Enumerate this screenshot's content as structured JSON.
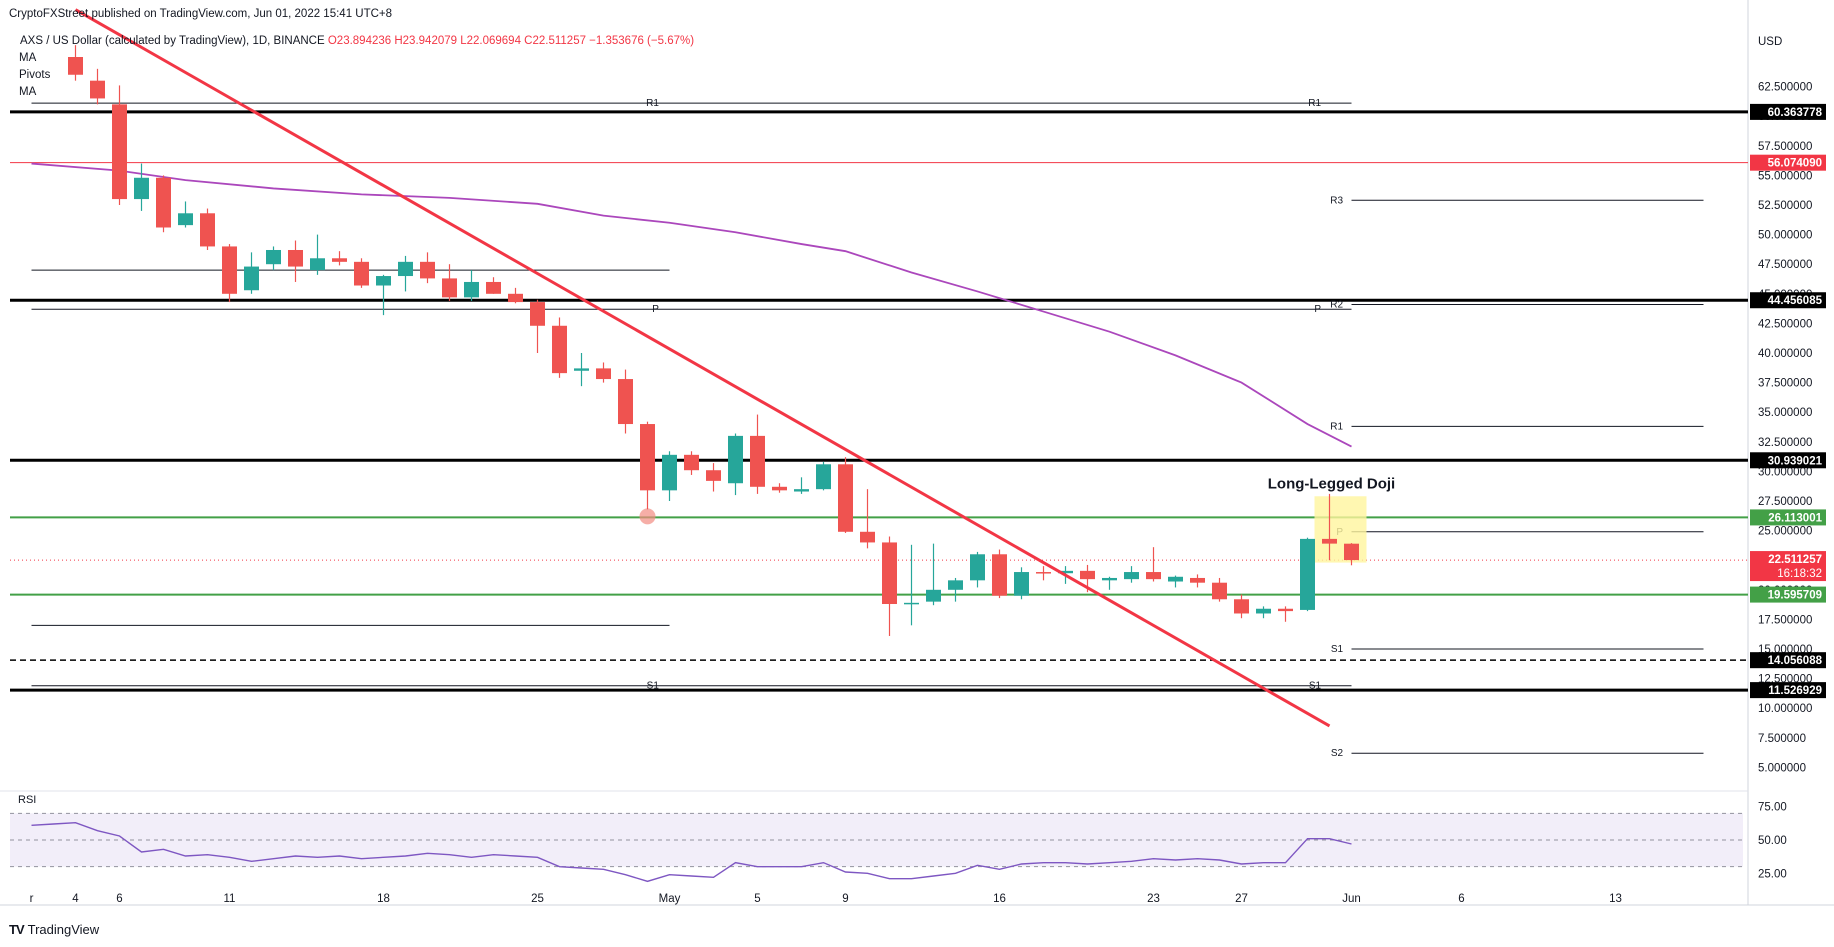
{
  "header": {
    "publisher": "CryptoFXStreet published on TradingView.com, Jun 01, 2022 15:41 UTC+8",
    "symbol": "AXS / US Dollar (calculated by TradingView), 1D, BINANCE",
    "ohlc": "O23.894236  H23.942079  L22.069694  C22.511257  −1.353676 (−5.67%)",
    "indicators": [
      "MA",
      "Pivots",
      "MA"
    ]
  },
  "branding": {
    "label": "TradingView",
    "logo": "TV"
  },
  "chart_data": {
    "type": "candlestick",
    "title": "AXS / US Dollar (calculated by TradingView), 1D, BINANCE",
    "currency_label": "USD",
    "y_range": [
      2.5,
      65.0
    ],
    "y_ticks": [
      5.0,
      7.5,
      10.0,
      12.5,
      15.0,
      17.5,
      20.0,
      22.5,
      25.0,
      27.5,
      30.0,
      32.5,
      35.0,
      37.5,
      40.0,
      42.5,
      45.0,
      47.5,
      50.0,
      52.5,
      55.0,
      57.5,
      60.0,
      62.5
    ],
    "x_ticks": [
      {
        "label": "r",
        "day": -29
      },
      {
        "label": "4",
        "day": -27
      },
      {
        "label": "6",
        "day": -25
      },
      {
        "label": "11",
        "day": -20
      },
      {
        "label": "18",
        "day": -13
      },
      {
        "label": "25",
        "day": -6
      },
      {
        "label": "May",
        "day": 0
      },
      {
        "label": "5",
        "day": 4
      },
      {
        "label": "9",
        "day": 8
      },
      {
        "label": "16",
        "day": 15
      },
      {
        "label": "23",
        "day": 22
      },
      {
        "label": "27",
        "day": 26
      },
      {
        "label": "Jun",
        "day": 31
      },
      {
        "label": "6",
        "day": 36
      },
      {
        "label": "13",
        "day": 43
      }
    ],
    "candles": [
      {
        "day": -27,
        "o": 65.0,
        "h": 66.0,
        "l": 63.0,
        "c": 63.5
      },
      {
        "day": -26,
        "o": 63.0,
        "h": 64.0,
        "l": 61.0,
        "c": 61.5
      },
      {
        "day": -25,
        "o": 61.0,
        "h": 62.6,
        "l": 52.5,
        "c": 53.0
      },
      {
        "day": -24,
        "o": 53.0,
        "h": 56.0,
        "l": 52.0,
        "c": 54.8
      },
      {
        "day": -23,
        "o": 54.8,
        "h": 55.0,
        "l": 50.2,
        "c": 50.6
      },
      {
        "day": -22,
        "o": 50.8,
        "h": 52.8,
        "l": 50.6,
        "c": 51.8
      },
      {
        "day": -21,
        "o": 51.8,
        "h": 52.2,
        "l": 48.7,
        "c": 49.0
      },
      {
        "day": -20,
        "o": 49.0,
        "h": 49.2,
        "l": 44.3,
        "c": 45.0
      },
      {
        "day": -19,
        "o": 45.3,
        "h": 48.5,
        "l": 45.0,
        "c": 47.3
      },
      {
        "day": -18,
        "o": 47.5,
        "h": 49.0,
        "l": 47.0,
        "c": 48.7
      },
      {
        "day": -17,
        "o": 48.7,
        "h": 49.5,
        "l": 46.0,
        "c": 47.3
      },
      {
        "day": -16,
        "o": 47.0,
        "h": 50.0,
        "l": 46.6,
        "c": 48.0
      },
      {
        "day": -15,
        "o": 48.0,
        "h": 48.6,
        "l": 47.4,
        "c": 47.7
      },
      {
        "day": -14,
        "o": 47.7,
        "h": 48.0,
        "l": 45.5,
        "c": 45.7
      },
      {
        "day": -13,
        "o": 45.7,
        "h": 46.6,
        "l": 43.2,
        "c": 46.5
      },
      {
        "day": -12,
        "o": 46.5,
        "h": 48.2,
        "l": 45.2,
        "c": 47.7
      },
      {
        "day": -11,
        "o": 47.7,
        "h": 48.5,
        "l": 45.9,
        "c": 46.3
      },
      {
        "day": -10,
        "o": 46.3,
        "h": 47.5,
        "l": 44.4,
        "c": 44.7
      },
      {
        "day": -9,
        "o": 44.7,
        "h": 47.0,
        "l": 44.4,
        "c": 46.0
      },
      {
        "day": -8,
        "o": 46.0,
        "h": 46.4,
        "l": 45.0,
        "c": 45.0
      },
      {
        "day": -7,
        "o": 45.0,
        "h": 45.5,
        "l": 44.2,
        "c": 44.3
      },
      {
        "day": -6,
        "o": 44.3,
        "h": 44.5,
        "l": 40.0,
        "c": 42.3
      },
      {
        "day": -5,
        "o": 42.3,
        "h": 43.0,
        "l": 37.9,
        "c": 38.3
      },
      {
        "day": -4,
        "o": 38.5,
        "h": 40.0,
        "l": 37.2,
        "c": 38.7
      },
      {
        "day": -3,
        "o": 38.7,
        "h": 39.2,
        "l": 37.5,
        "c": 37.8
      },
      {
        "day": -2,
        "o": 37.8,
        "h": 38.6,
        "l": 33.2,
        "c": 34.0
      },
      {
        "day": -1,
        "o": 34.0,
        "h": 34.2,
        "l": 26.8,
        "c": 28.4
      },
      {
        "day": 0,
        "o": 28.4,
        "h": 31.7,
        "l": 27.5,
        "c": 31.4
      },
      {
        "day": 1,
        "o": 31.4,
        "h": 31.7,
        "l": 29.7,
        "c": 30.1
      },
      {
        "day": 2,
        "o": 30.1,
        "h": 30.7,
        "l": 28.3,
        "c": 29.2
      },
      {
        "day": 3,
        "o": 29.0,
        "h": 33.2,
        "l": 28.0,
        "c": 33.0
      },
      {
        "day": 4,
        "o": 33.0,
        "h": 34.8,
        "l": 28.1,
        "c": 28.7
      },
      {
        "day": 5,
        "o": 28.7,
        "h": 29.0,
        "l": 28.2,
        "c": 28.4
      },
      {
        "day": 6,
        "o": 28.3,
        "h": 29.5,
        "l": 28.1,
        "c": 28.5
      },
      {
        "day": 7,
        "o": 28.5,
        "h": 30.8,
        "l": 28.4,
        "c": 30.6
      },
      {
        "day": 8,
        "o": 30.6,
        "h": 31.2,
        "l": 24.8,
        "c": 24.9
      },
      {
        "day": 9,
        "o": 24.9,
        "h": 28.5,
        "l": 23.5,
        "c": 24.0
      },
      {
        "day": 10,
        "o": 24.0,
        "h": 24.5,
        "l": 16.1,
        "c": 18.8
      },
      {
        "day": 11,
        "o": 18.8,
        "h": 23.8,
        "l": 17.0,
        "c": 18.9
      },
      {
        "day": 12,
        "o": 19.0,
        "h": 23.9,
        "l": 18.7,
        "c": 20.0
      },
      {
        "day": 13,
        "o": 20.0,
        "h": 21.0,
        "l": 19.0,
        "c": 20.8
      },
      {
        "day": 14,
        "o": 20.8,
        "h": 23.2,
        "l": 20.2,
        "c": 23.0
      },
      {
        "day": 15,
        "o": 23.0,
        "h": 23.4,
        "l": 19.3,
        "c": 19.5
      },
      {
        "day": 16,
        "o": 19.5,
        "h": 21.9,
        "l": 19.2,
        "c": 21.5
      },
      {
        "day": 17,
        "o": 21.5,
        "h": 22.0,
        "l": 20.8,
        "c": 21.4
      },
      {
        "day": 18,
        "o": 21.4,
        "h": 22.0,
        "l": 20.5,
        "c": 21.6
      },
      {
        "day": 19,
        "o": 21.6,
        "h": 22.1,
        "l": 19.8,
        "c": 20.9
      },
      {
        "day": 20,
        "o": 20.8,
        "h": 21.1,
        "l": 20.0,
        "c": 21.0
      },
      {
        "day": 21,
        "o": 20.9,
        "h": 22.0,
        "l": 20.6,
        "c": 21.5
      },
      {
        "day": 22,
        "o": 21.5,
        "h": 23.6,
        "l": 20.7,
        "c": 20.9
      },
      {
        "day": 23,
        "o": 20.7,
        "h": 21.2,
        "l": 20.2,
        "c": 21.1
      },
      {
        "day": 24,
        "o": 21.0,
        "h": 21.3,
        "l": 20.2,
        "c": 20.6
      },
      {
        "day": 25,
        "o": 20.6,
        "h": 21.0,
        "l": 19.0,
        "c": 19.2
      },
      {
        "day": 26,
        "o": 19.2,
        "h": 19.6,
        "l": 17.6,
        "c": 18.0
      },
      {
        "day": 27,
        "o": 18.0,
        "h": 18.6,
        "l": 17.6,
        "c": 18.4
      },
      {
        "day": 28,
        "o": 18.4,
        "h": 18.6,
        "l": 17.3,
        "c": 18.2
      },
      {
        "day": 29,
        "o": 18.3,
        "h": 24.4,
        "l": 18.2,
        "c": 24.3
      },
      {
        "day": 30,
        "o": 24.3,
        "h": 28.1,
        "l": 22.5,
        "c": 23.9
      },
      {
        "day": 31,
        "o": 23.894236,
        "h": 23.942079,
        "l": 22.069694,
        "c": 22.511257
      }
    ],
    "ma_long": {
      "name": "MA",
      "color": "#ab47bc",
      "points": [
        {
          "day": -29,
          "v": 56.0
        },
        {
          "day": -25,
          "v": 55.4
        },
        {
          "day": -22,
          "v": 54.6
        },
        {
          "day": -18,
          "v": 53.9
        },
        {
          "day": -14,
          "v": 53.4
        },
        {
          "day": -10,
          "v": 53.1
        },
        {
          "day": -6,
          "v": 52.6
        },
        {
          "day": -3,
          "v": 51.6
        },
        {
          "day": 0,
          "v": 51.0
        },
        {
          "day": 3,
          "v": 50.2
        },
        {
          "day": 6,
          "v": 49.2
        },
        {
          "day": 8,
          "v": 48.6
        },
        {
          "day": 11,
          "v": 46.8
        },
        {
          "day": 14,
          "v": 45.2
        },
        {
          "day": 17,
          "v": 43.5
        },
        {
          "day": 20,
          "v": 41.8
        },
        {
          "day": 23,
          "v": 39.8
        },
        {
          "day": 26,
          "v": 37.5
        },
        {
          "day": 29,
          "v": 34.0
        },
        {
          "day": 31,
          "v": 32.1
        }
      ]
    },
    "trendline": {
      "color": "#f23645",
      "from": {
        "day": -27,
        "v": 69.0
      },
      "to": {
        "day": 30,
        "v": 8.5
      }
    },
    "key_levels": [
      {
        "value": 60.363778,
        "label": "60.363778",
        "style": "thick",
        "color": "#000000"
      },
      {
        "value": 56.07409,
        "label": "56.074090",
        "style": "thin",
        "color": "#f23645"
      },
      {
        "value": 44.456085,
        "label": "44.456085",
        "style": "thick",
        "color": "#000000"
      },
      {
        "value": 30.939021,
        "label": "30.939021",
        "style": "thick",
        "color": "#000000"
      },
      {
        "value": 26.113001,
        "label": "26.113001",
        "style": "medium",
        "color": "#43a047"
      },
      {
        "value": 19.595709,
        "label": "19.595709",
        "style": "medium",
        "color": "#43a047"
      },
      {
        "value": 14.056088,
        "label": "14.056088",
        "style": "dashed",
        "color": "#000000"
      },
      {
        "value": 11.526929,
        "label": "11.526929",
        "style": "thick",
        "color": "#000000"
      }
    ],
    "current_price": {
      "value": 22.511257,
      "label": "22.511257",
      "countdown": "16:18:32",
      "color": "#f23645"
    },
    "pivot_sets": [
      {
        "from_day": -29,
        "to_day": 0,
        "label_day": -0.3,
        "levels": [
          {
            "name": "R1",
            "value": 61.1
          },
          {
            "name": "",
            "value": 47.0
          },
          {
            "name": "P",
            "value": 43.7
          },
          {
            "name": "",
            "value": 17.0
          },
          {
            "name": "S1",
            "value": 11.9
          }
        ]
      },
      {
        "from_day": 0,
        "to_day": 31,
        "label_day": 29.8,
        "levels": [
          {
            "name": "R1",
            "value": 61.1
          },
          {
            "name": "P",
            "value": 43.7
          },
          {
            "name": "S1",
            "value": 11.9
          }
        ]
      },
      {
        "from_day": 31,
        "to_day": 47,
        "label_day": 30.8,
        "levels": [
          {
            "name": "R3",
            "value": 52.9
          },
          {
            "name": "R2",
            "value": 44.1
          },
          {
            "name": "R1",
            "value": 33.8
          },
          {
            "name": "P",
            "value": 24.9
          },
          {
            "name": "S1",
            "value": 15.0
          },
          {
            "name": "S2",
            "value": 6.2
          }
        ]
      }
    ],
    "annotation": {
      "text": "Long-Legged Doji",
      "from_day": 29.5,
      "to_day": 31.5,
      "top": 27.9,
      "bottom": 22.3,
      "color": "#fff59d"
    },
    "marker": {
      "day": -1,
      "value": 26.2,
      "color": "#f28b82"
    },
    "rsi": {
      "label": "RSI",
      "y_range": [
        20,
        80
      ],
      "ticks": [
        25.0,
        50.0,
        75.0
      ],
      "band": [
        30,
        70
      ],
      "color": "#7e57c2",
      "values": [
        {
          "day": -29,
          "v": 61
        },
        {
          "day": -28,
          "v": 62
        },
        {
          "day": -27,
          "v": 63
        },
        {
          "day": -26,
          "v": 57
        },
        {
          "day": -25,
          "v": 53
        },
        {
          "day": -24,
          "v": 41
        },
        {
          "day": -23,
          "v": 43
        },
        {
          "day": -22,
          "v": 38
        },
        {
          "day": -21,
          "v": 39
        },
        {
          "day": -20,
          "v": 37
        },
        {
          "day": -19,
          "v": 34
        },
        {
          "day": -18,
          "v": 36
        },
        {
          "day": -17,
          "v": 38
        },
        {
          "day": -16,
          "v": 37
        },
        {
          "day": -15,
          "v": 38
        },
        {
          "day": -14,
          "v": 36
        },
        {
          "day": -13,
          "v": 37
        },
        {
          "day": -12,
          "v": 38
        },
        {
          "day": -11,
          "v": 40
        },
        {
          "day": -10,
          "v": 39
        },
        {
          "day": -9,
          "v": 37
        },
        {
          "day": -8,
          "v": 39
        },
        {
          "day": -7,
          "v": 38
        },
        {
          "day": -6,
          "v": 37
        },
        {
          "day": -5,
          "v": 30
        },
        {
          "day": -4,
          "v": 29
        },
        {
          "day": -3,
          "v": 28
        },
        {
          "day": -2,
          "v": 24
        },
        {
          "day": -1,
          "v": 19
        },
        {
          "day": 0,
          "v": 24
        },
        {
          "day": 1,
          "v": 23
        },
        {
          "day": 2,
          "v": 22
        },
        {
          "day": 3,
          "v": 33
        },
        {
          "day": 4,
          "v": 30
        },
        {
          "day": 5,
          "v": 30
        },
        {
          "day": 6,
          "v": 30
        },
        {
          "day": 7,
          "v": 33
        },
        {
          "day": 8,
          "v": 26
        },
        {
          "day": 9,
          "v": 25
        },
        {
          "day": 10,
          "v": 21
        },
        {
          "day": 11,
          "v": 21
        },
        {
          "day": 12,
          "v": 23
        },
        {
          "day": 13,
          "v": 25
        },
        {
          "day": 14,
          "v": 31
        },
        {
          "day": 15,
          "v": 28
        },
        {
          "day": 16,
          "v": 32
        },
        {
          "day": 17,
          "v": 33
        },
        {
          "day": 18,
          "v": 33
        },
        {
          "day": 19,
          "v": 32
        },
        {
          "day": 20,
          "v": 33
        },
        {
          "day": 21,
          "v": 34
        },
        {
          "day": 22,
          "v": 36
        },
        {
          "day": 23,
          "v": 35
        },
        {
          "day": 24,
          "v": 36
        },
        {
          "day": 25,
          "v": 35
        },
        {
          "day": 26,
          "v": 32
        },
        {
          "day": 27,
          "v": 33
        },
        {
          "day": 28,
          "v": 33
        },
        {
          "day": 29,
          "v": 51
        },
        {
          "day": 30,
          "v": 51
        },
        {
          "day": 31,
          "v": 47
        }
      ]
    }
  }
}
